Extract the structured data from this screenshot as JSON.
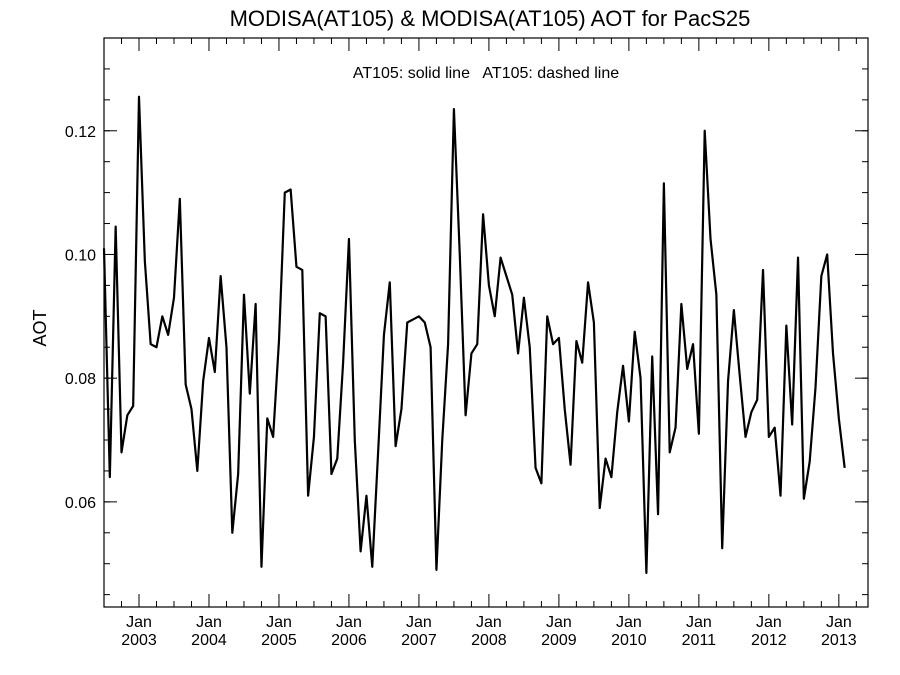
{
  "chart_data": {
    "type": "line",
    "title": "MODISA(AT105) & MODISA(AT105)  AOT for PacS25",
    "annotation": "AT105: solid line   AT105: dashed line",
    "xlabel": "",
    "ylabel": "AOT",
    "xlim": [
      "2002-07",
      "2013-06"
    ],
    "ylim": [
      0.043,
      0.135
    ],
    "y_ticks": [
      0.06,
      0.08,
      0.1,
      0.12
    ],
    "y_tick_labels": [
      "0.06",
      "0.08",
      "0.10",
      "0.12"
    ],
    "x_ticks": [
      {
        "month": "Jan",
        "year": "2003"
      },
      {
        "month": "Jan",
        "year": "2004"
      },
      {
        "month": "Jan",
        "year": "2005"
      },
      {
        "month": "Jan",
        "year": "2006"
      },
      {
        "month": "Jan",
        "year": "2007"
      },
      {
        "month": "Jan",
        "year": "2008"
      },
      {
        "month": "Jan",
        "year": "2009"
      },
      {
        "month": "Jan",
        "year": "2010"
      },
      {
        "month": "Jan",
        "year": "2011"
      },
      {
        "month": "Jan",
        "year": "2012"
      },
      {
        "month": "Jan",
        "year": "2013"
      }
    ],
    "grid": false,
    "series": [
      {
        "name": "AT105",
        "style": "solid",
        "color": "#000000",
        "start": "2002-07",
        "step": "month",
        "values": [
          0.101,
          0.064,
          0.1045,
          0.068,
          0.074,
          0.0755,
          0.1255,
          0.099,
          0.0855,
          0.085,
          0.09,
          0.087,
          0.093,
          0.109,
          0.079,
          0.075,
          0.065,
          0.0795,
          0.0865,
          0.081,
          0.0965,
          0.085,
          0.055,
          0.0645,
          0.0935,
          0.0775,
          0.092,
          0.0495,
          0.0735,
          0.0705,
          0.086,
          0.11,
          0.1105,
          0.098,
          0.0975,
          0.061,
          0.0705,
          0.0905,
          0.09,
          0.0645,
          0.067,
          0.0825,
          0.1025,
          0.07,
          0.052,
          0.061,
          0.0495,
          0.068,
          0.087,
          0.0955,
          0.069,
          0.075,
          0.089,
          0.0895,
          0.09,
          0.089,
          0.085,
          0.049,
          0.07,
          0.0855,
          0.1235,
          0.1,
          0.074,
          0.084,
          0.0855,
          0.1065,
          0.095,
          0.09,
          0.0995,
          0.0965,
          0.0935,
          0.084,
          0.093,
          0.085,
          0.0655,
          0.063,
          0.09,
          0.0855,
          0.0865,
          0.075,
          0.066,
          0.086,
          0.0825,
          0.0955,
          0.089,
          0.059,
          0.067,
          0.064,
          0.0745,
          0.082,
          0.073,
          0.0875,
          0.08,
          0.0485,
          0.0835,
          0.058,
          0.1115,
          0.068,
          0.072,
          0.092,
          0.0815,
          0.0855,
          0.071,
          0.12,
          0.1025,
          0.0935,
          0.0525,
          0.0795,
          0.091,
          0.0805,
          0.0705,
          0.0745,
          0.0765,
          0.0975,
          0.0705,
          0.072,
          0.061,
          0.0885,
          0.0725,
          0.0995,
          0.0605,
          0.0665,
          0.0785,
          0.0965,
          0.1,
          0.084,
          0.0735,
          0.0655
        ]
      }
    ]
  }
}
